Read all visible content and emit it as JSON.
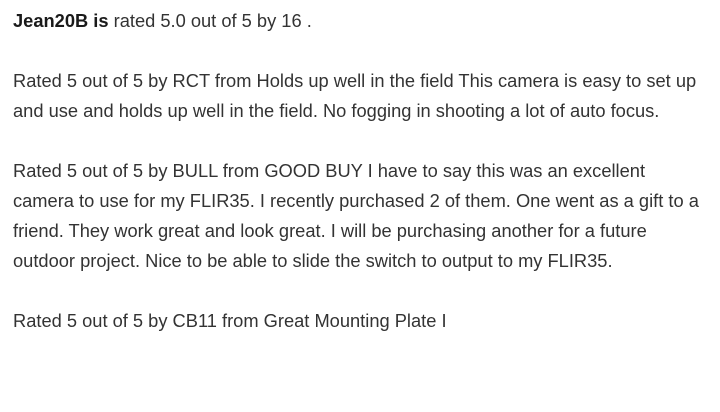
{
  "summary": {
    "product": "Jean20B is",
    "rating_text": " rated 5.0 out of 5 by 16 ."
  },
  "reviews": [
    {
      "text": "Rated 5 out of 5 by RCT from Holds up well in the field This camera is easy to set up and use and holds up well in the field. No fogging in shooting a lot of auto focus."
    },
    {
      "text": "Rated 5 out of 5 by BULL from GOOD BUY I have to say this was an excellent camera to use for my FLIR35. I recently purchased 2 of them. One went as a gift to a friend. They work great and look great. I will be purchasing another for a future outdoor project. Nice to be able to slide the switch to output to my FLIR35."
    },
    {
      "text": "Rated 5 out of 5 by CB11 from Great Mounting Plate I"
    }
  ]
}
